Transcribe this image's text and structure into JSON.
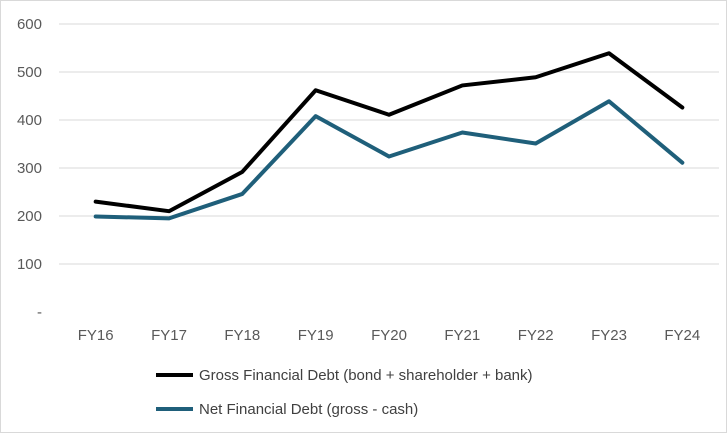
{
  "chart_data": {
    "type": "line",
    "title": "",
    "xlabel": "",
    "ylabel": "",
    "categories": [
      "FY16",
      "FY17",
      "FY18",
      "FY19",
      "FY20",
      "FY21",
      "FY22",
      "FY23",
      "FY24"
    ],
    "ylim": [
      0,
      600
    ],
    "yticks": [
      0,
      100,
      200,
      300,
      400,
      500,
      600
    ],
    "ytick_labels": [
      "-",
      "100",
      "200",
      "300",
      "400",
      "500",
      "600"
    ],
    "grid": true,
    "legend_position": "bottom",
    "series": [
      {
        "name": "Gross Financial Debt (bond + shareholder + bank)",
        "color": "#000000",
        "values": [
          230,
          210,
          292,
          462,
          411,
          472,
          489,
          539,
          426
        ]
      },
      {
        "name": "Net Financial Debt (gross - cash)",
        "color": "#1f5f7a",
        "values": [
          199,
          195,
          246,
          408,
          324,
          374,
          351,
          439,
          311
        ]
      }
    ]
  }
}
